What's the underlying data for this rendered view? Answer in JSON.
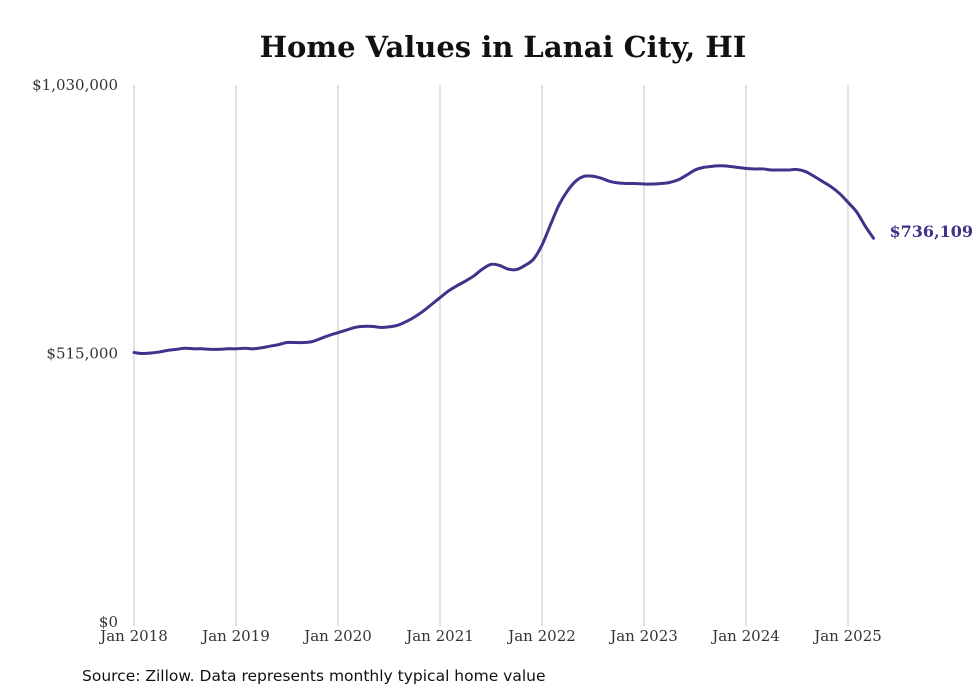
{
  "chart_data": {
    "type": "line",
    "title": "Home Values in Lanai City, HI",
    "xlabel": "",
    "ylabel": "",
    "grid": "vertical",
    "legend": "none",
    "color": "#3d348b",
    "y_ticks": [
      {
        "value": 0,
        "label": "$0"
      },
      {
        "value": 515000,
        "label": "$515,000"
      },
      {
        "value": 1030000,
        "label": "$1,030,000"
      }
    ],
    "ylim": [
      0,
      1030000
    ],
    "x_ticks": [
      "Jan 2018",
      "Jan 2019",
      "Jan 2020",
      "Jan 2021",
      "Jan 2022",
      "Jan 2023",
      "Jan 2024",
      "Jan 2025"
    ],
    "xlim": [
      "2018-01",
      "2025-04"
    ],
    "series": [
      {
        "points": [
          [
            "2018-01",
            517000
          ],
          [
            "2018-02",
            515000
          ],
          [
            "2018-03",
            516000
          ],
          [
            "2018-04",
            518000
          ],
          [
            "2018-05",
            521000
          ],
          [
            "2018-06",
            523000
          ],
          [
            "2018-07",
            525000
          ],
          [
            "2018-08",
            524000
          ],
          [
            "2018-09",
            524000
          ],
          [
            "2018-10",
            523000
          ],
          [
            "2018-11",
            523000
          ],
          [
            "2018-12",
            524000
          ],
          [
            "2019-01",
            524000
          ],
          [
            "2019-02",
            525000
          ],
          [
            "2019-03",
            524000
          ],
          [
            "2019-04",
            526000
          ],
          [
            "2019-05",
            529000
          ],
          [
            "2019-06",
            532000
          ],
          [
            "2019-07",
            536000
          ],
          [
            "2019-08",
            536000
          ],
          [
            "2019-09",
            536000
          ],
          [
            "2019-10",
            538000
          ],
          [
            "2019-11",
            544000
          ],
          [
            "2019-12",
            550000
          ],
          [
            "2020-01",
            555000
          ],
          [
            "2020-02",
            560000
          ],
          [
            "2020-03",
            565000
          ],
          [
            "2020-04",
            567000
          ],
          [
            "2020-05",
            567000
          ],
          [
            "2020-06",
            565000
          ],
          [
            "2020-07",
            566000
          ],
          [
            "2020-08",
            569000
          ],
          [
            "2020-09",
            576000
          ],
          [
            "2020-10",
            585000
          ],
          [
            "2020-11",
            596000
          ],
          [
            "2020-12",
            609000
          ],
          [
            "2021-01",
            622000
          ],
          [
            "2021-02",
            635000
          ],
          [
            "2021-03",
            645000
          ],
          [
            "2021-04",
            654000
          ],
          [
            "2021-05",
            664000
          ],
          [
            "2021-06",
            677000
          ],
          [
            "2021-07",
            686000
          ],
          [
            "2021-08",
            684000
          ],
          [
            "2021-09",
            677000
          ],
          [
            "2021-10",
            676000
          ],
          [
            "2021-11",
            684000
          ],
          [
            "2021-12",
            696000
          ],
          [
            "2022-01",
            723000
          ],
          [
            "2022-02",
            762000
          ],
          [
            "2022-03",
            800000
          ],
          [
            "2022-04",
            827000
          ],
          [
            "2022-05",
            846000
          ],
          [
            "2022-06",
            855000
          ],
          [
            "2022-07",
            855000
          ],
          [
            "2022-08",
            851000
          ],
          [
            "2022-09",
            845000
          ],
          [
            "2022-10",
            842000
          ],
          [
            "2022-11",
            841000
          ],
          [
            "2022-12",
            841000
          ],
          [
            "2023-01",
            840000
          ],
          [
            "2023-02",
            840000
          ],
          [
            "2023-03",
            841000
          ],
          [
            "2023-04",
            843000
          ],
          [
            "2023-05",
            848000
          ],
          [
            "2023-06",
            857000
          ],
          [
            "2023-07",
            867000
          ],
          [
            "2023-08",
            872000
          ],
          [
            "2023-09",
            874000
          ],
          [
            "2023-10",
            875000
          ],
          [
            "2023-11",
            874000
          ],
          [
            "2023-12",
            872000
          ],
          [
            "2024-01",
            870000
          ],
          [
            "2024-02",
            869000
          ],
          [
            "2024-03",
            869000
          ],
          [
            "2024-04",
            867000
          ],
          [
            "2024-05",
            867000
          ],
          [
            "2024-06",
            867000
          ],
          [
            "2024-07",
            868000
          ],
          [
            "2024-08",
            864000
          ],
          [
            "2024-09",
            855000
          ],
          [
            "2024-10",
            845000
          ],
          [
            "2024-11",
            835000
          ],
          [
            "2024-12",
            822000
          ],
          [
            "2025-01",
            805000
          ],
          [
            "2025-02",
            787000
          ],
          [
            "2025-03",
            760000
          ],
          [
            "2025-04",
            736109
          ]
        ]
      }
    ],
    "end_label": "$736,109",
    "source": "Source: Zillow. Data represents monthly typical home value"
  }
}
